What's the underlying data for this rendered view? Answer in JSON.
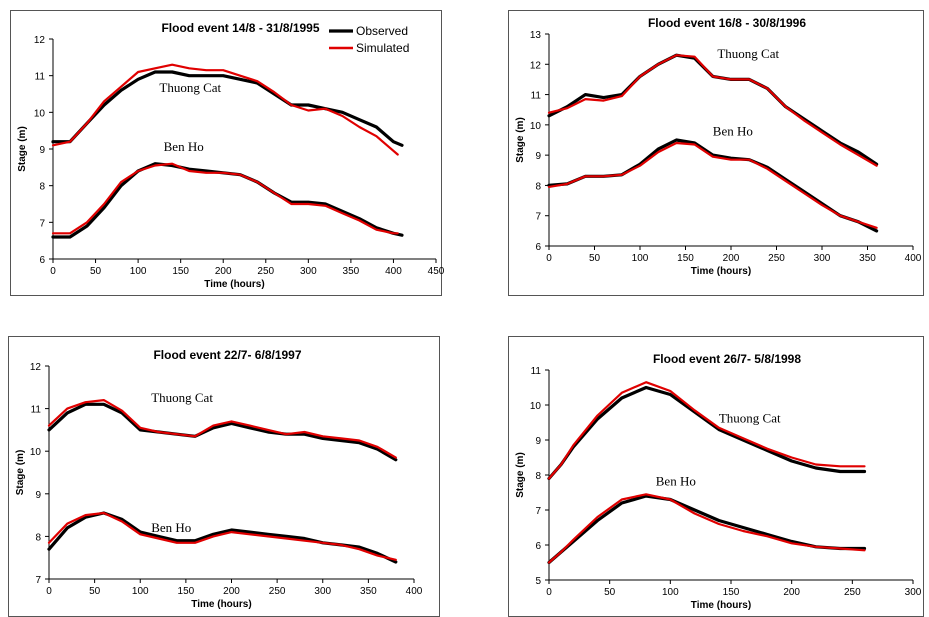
{
  "chart_data": [
    {
      "type": "line",
      "title": "Flood event 14/8 - 31/8/1995",
      "xlabel": "Time (hours)",
      "ylabel": "Stage (m)",
      "xlim": [
        0,
        450
      ],
      "ylim": [
        6,
        12
      ],
      "xticks": [
        "0",
        "50",
        "100",
        "150",
        "200",
        "250",
        "300",
        "350",
        "400",
        "450"
      ],
      "yticks": [
        "6",
        "7",
        "8",
        "9",
        "10",
        "11",
        "12"
      ],
      "legend": {
        "position": "top-right",
        "entries": [
          "Observed",
          "Simulated"
        ]
      },
      "series": [
        {
          "name": "Observed",
          "station": "Thuong Cat",
          "color": "#000000",
          "x": [
            0,
            20,
            40,
            60,
            80,
            100,
            120,
            140,
            160,
            180,
            200,
            220,
            240,
            260,
            280,
            300,
            320,
            340,
            360,
            380,
            400,
            410
          ],
          "y": [
            9.2,
            9.2,
            9.7,
            10.2,
            10.6,
            10.9,
            11.1,
            11.1,
            11.0,
            11.0,
            11.0,
            10.9,
            10.8,
            10.5,
            10.2,
            10.2,
            10.1,
            10.0,
            9.8,
            9.6,
            9.2,
            9.1
          ]
        },
        {
          "name": "Simulated",
          "station": "Thuong Cat",
          "color": "#e00000",
          "x": [
            0,
            20,
            40,
            60,
            80,
            100,
            120,
            140,
            160,
            180,
            200,
            220,
            240,
            260,
            280,
            300,
            320,
            340,
            360,
            380,
            400,
            405
          ],
          "y": [
            9.1,
            9.2,
            9.7,
            10.3,
            10.7,
            11.1,
            11.2,
            11.3,
            11.2,
            11.15,
            11.15,
            11.0,
            10.85,
            10.55,
            10.2,
            10.05,
            10.1,
            9.9,
            9.6,
            9.35,
            8.95,
            8.85
          ]
        },
        {
          "name": "Observed",
          "station": "Ben Ho",
          "color": "#000000",
          "x": [
            0,
            20,
            40,
            60,
            80,
            100,
            120,
            140,
            160,
            180,
            200,
            220,
            240,
            260,
            280,
            300,
            320,
            340,
            360,
            380,
            400,
            410
          ],
          "y": [
            6.6,
            6.6,
            6.9,
            7.4,
            8.0,
            8.4,
            8.6,
            8.55,
            8.45,
            8.4,
            8.35,
            8.3,
            8.1,
            7.8,
            7.55,
            7.55,
            7.5,
            7.3,
            7.1,
            6.85,
            6.7,
            6.65
          ]
        },
        {
          "name": "Simulated",
          "station": "Ben Ho",
          "color": "#e00000",
          "x": [
            0,
            20,
            40,
            60,
            80,
            100,
            120,
            140,
            160,
            180,
            200,
            220,
            240,
            260,
            280,
            300,
            320,
            340,
            360,
            380,
            400,
            405
          ],
          "y": [
            6.7,
            6.7,
            7.0,
            7.5,
            8.1,
            8.4,
            8.55,
            8.6,
            8.4,
            8.35,
            8.35,
            8.3,
            8.1,
            7.8,
            7.5,
            7.5,
            7.45,
            7.25,
            7.05,
            6.8,
            6.7,
            6.7
          ]
        }
      ],
      "annotations": [
        {
          "text": "Thuong Cat",
          "x": 125,
          "y": 10.55
        },
        {
          "text": "Ben Ho",
          "x": 130,
          "y": 8.95
        }
      ]
    },
    {
      "type": "line",
      "title": "Flood event 16/8 - 30/8/1996",
      "xlabel": "Time (hours)",
      "ylabel": "Stage (m)",
      "xlim": [
        0,
        400
      ],
      "ylim": [
        6,
        13
      ],
      "xticks": [
        "0",
        "50",
        "100",
        "150",
        "200",
        "250",
        "300",
        "350",
        "400"
      ],
      "yticks": [
        "6",
        "7",
        "8",
        "9",
        "10",
        "11",
        "12",
        "13"
      ],
      "series": [
        {
          "name": "Observed",
          "station": "Thuong Cat",
          "color": "#000000",
          "x": [
            0,
            20,
            40,
            60,
            80,
            100,
            120,
            140,
            160,
            180,
            200,
            220,
            240,
            260,
            280,
            300,
            320,
            340,
            360
          ],
          "y": [
            10.3,
            10.6,
            11.0,
            10.9,
            11.0,
            11.6,
            12.0,
            12.3,
            12.2,
            11.6,
            11.5,
            11.5,
            11.2,
            10.6,
            10.2,
            9.8,
            9.4,
            9.1,
            8.7
          ]
        },
        {
          "name": "Simulated",
          "station": "Thuong Cat",
          "color": "#e00000",
          "x": [
            0,
            20,
            40,
            60,
            80,
            100,
            120,
            140,
            160,
            180,
            200,
            220,
            240,
            260,
            280,
            300,
            320,
            340,
            360
          ],
          "y": [
            10.4,
            10.55,
            10.85,
            10.8,
            10.95,
            11.6,
            12.0,
            12.3,
            12.25,
            11.6,
            11.5,
            11.5,
            11.2,
            10.6,
            10.15,
            9.75,
            9.35,
            9.0,
            8.65
          ]
        },
        {
          "name": "Observed",
          "station": "Ben Ho",
          "color": "#000000",
          "x": [
            0,
            20,
            40,
            60,
            80,
            100,
            120,
            140,
            160,
            180,
            200,
            220,
            240,
            260,
            280,
            300,
            320,
            340,
            360
          ],
          "y": [
            8.0,
            8.05,
            8.3,
            8.3,
            8.35,
            8.7,
            9.2,
            9.5,
            9.4,
            9.0,
            8.9,
            8.85,
            8.6,
            8.2,
            7.8,
            7.4,
            7.0,
            6.8,
            6.5
          ]
        },
        {
          "name": "Simulated",
          "station": "Ben Ho",
          "color": "#e00000",
          "x": [
            0,
            20,
            40,
            60,
            80,
            100,
            120,
            140,
            160,
            180,
            200,
            220,
            240,
            260,
            280,
            300,
            320,
            340,
            360
          ],
          "y": [
            7.95,
            8.05,
            8.3,
            8.3,
            8.35,
            8.65,
            9.1,
            9.4,
            9.35,
            8.95,
            8.85,
            8.85,
            8.55,
            8.15,
            7.75,
            7.35,
            7.0,
            6.8,
            6.6
          ]
        }
      ],
      "annotations": [
        {
          "text": "Thuong Cat",
          "x": 185,
          "y": 12.2
        },
        {
          "text": "Ben Ho",
          "x": 180,
          "y": 9.65
        }
      ]
    },
    {
      "type": "line",
      "title": "Flood event 22/7- 6/8/1997",
      "xlabel": "Time (hours)",
      "ylabel": "Stage (m)",
      "xlim": [
        0,
        400
      ],
      "ylim": [
        7,
        12
      ],
      "xticks": [
        "0",
        "50",
        "100",
        "150",
        "200",
        "250",
        "300",
        "350",
        "400"
      ],
      "yticks": [
        "7",
        "8",
        "9",
        "10",
        "11",
        "12"
      ],
      "series": [
        {
          "name": "Observed",
          "station": "Thuong Cat",
          "color": "#000000",
          "x": [
            0,
            20,
            40,
            60,
            80,
            100,
            120,
            140,
            160,
            180,
            200,
            220,
            240,
            260,
            280,
            300,
            320,
            340,
            360,
            380
          ],
          "y": [
            10.5,
            10.9,
            11.1,
            11.1,
            10.9,
            10.5,
            10.45,
            10.4,
            10.35,
            10.55,
            10.65,
            10.55,
            10.45,
            10.4,
            10.4,
            10.3,
            10.25,
            10.2,
            10.05,
            9.8
          ]
        },
        {
          "name": "Simulated",
          "station": "Thuong Cat",
          "color": "#e00000",
          "x": [
            0,
            20,
            40,
            60,
            80,
            100,
            120,
            140,
            160,
            180,
            200,
            220,
            240,
            260,
            280,
            300,
            320,
            340,
            360,
            380
          ],
          "y": [
            10.6,
            11.0,
            11.15,
            11.2,
            10.95,
            10.55,
            10.45,
            10.4,
            10.35,
            10.6,
            10.7,
            10.6,
            10.5,
            10.4,
            10.45,
            10.35,
            10.3,
            10.25,
            10.1,
            9.85
          ]
        },
        {
          "name": "Observed",
          "station": "Ben Ho",
          "color": "#000000",
          "x": [
            0,
            20,
            40,
            60,
            80,
            100,
            120,
            140,
            160,
            180,
            200,
            220,
            240,
            260,
            280,
            300,
            320,
            340,
            360,
            380
          ],
          "y": [
            7.7,
            8.2,
            8.45,
            8.55,
            8.4,
            8.1,
            8.0,
            7.9,
            7.9,
            8.05,
            8.15,
            8.1,
            8.05,
            8.0,
            7.95,
            7.85,
            7.8,
            7.75,
            7.6,
            7.4
          ]
        },
        {
          "name": "Simulated",
          "station": "Ben Ho",
          "color": "#e00000",
          "x": [
            0,
            20,
            40,
            60,
            80,
            100,
            120,
            140,
            160,
            180,
            200,
            220,
            240,
            260,
            280,
            300,
            320,
            340,
            360,
            380
          ],
          "y": [
            7.85,
            8.3,
            8.5,
            8.55,
            8.35,
            8.05,
            7.95,
            7.85,
            7.85,
            8.0,
            8.1,
            8.05,
            8.0,
            7.95,
            7.9,
            7.85,
            7.8,
            7.7,
            7.55,
            7.45
          ]
        }
      ],
      "annotations": [
        {
          "text": "Thuong Cat",
          "x": 112,
          "y": 11.15
        },
        {
          "text": "Ben Ho",
          "x": 112,
          "y": 8.1
        }
      ]
    },
    {
      "type": "line",
      "title": "Flood event 26/7- 5/8/1998",
      "xlabel": "Time (hours)",
      "ylabel": "Stage (m)",
      "xlim": [
        0,
        300
      ],
      "ylim": [
        5,
        11
      ],
      "xticks": [
        "0",
        "50",
        "100",
        "150",
        "200",
        "250",
        "300"
      ],
      "yticks": [
        "5",
        "6",
        "7",
        "8",
        "9",
        "10",
        "11"
      ],
      "series": [
        {
          "name": "Observed",
          "station": "Thuong Cat",
          "color": "#000000",
          "x": [
            0,
            10,
            20,
            40,
            60,
            80,
            100,
            120,
            140,
            160,
            180,
            200,
            220,
            240,
            260
          ],
          "y": [
            7.9,
            8.3,
            8.8,
            9.6,
            10.2,
            10.5,
            10.3,
            9.8,
            9.3,
            9.0,
            8.7,
            8.4,
            8.2,
            8.1,
            8.1
          ]
        },
        {
          "name": "Simulated",
          "station": "Thuong Cat",
          "color": "#e00000",
          "x": [
            0,
            10,
            20,
            40,
            60,
            80,
            100,
            120,
            140,
            160,
            180,
            200,
            220,
            240,
            260
          ],
          "y": [
            7.9,
            8.3,
            8.85,
            9.7,
            10.35,
            10.65,
            10.4,
            9.85,
            9.35,
            9.05,
            8.75,
            8.5,
            8.3,
            8.25,
            8.25
          ]
        },
        {
          "name": "Observed",
          "station": "Ben Ho",
          "color": "#000000",
          "x": [
            0,
            10,
            20,
            40,
            60,
            80,
            100,
            120,
            140,
            160,
            180,
            200,
            220,
            240,
            260
          ],
          "y": [
            5.5,
            5.8,
            6.1,
            6.7,
            7.2,
            7.4,
            7.3,
            7.0,
            6.7,
            6.5,
            6.3,
            6.1,
            5.95,
            5.9,
            5.9
          ]
        },
        {
          "name": "Simulated",
          "station": "Ben Ho",
          "color": "#e00000",
          "x": [
            0,
            10,
            20,
            40,
            60,
            80,
            100,
            120,
            140,
            160,
            180,
            200,
            220,
            240,
            260
          ],
          "y": [
            5.5,
            5.8,
            6.15,
            6.8,
            7.3,
            7.45,
            7.3,
            6.9,
            6.6,
            6.4,
            6.25,
            6.05,
            5.95,
            5.9,
            5.85
          ]
        }
      ],
      "annotations": [
        {
          "text": "Thuong Cat",
          "x": 140,
          "y": 9.5
        },
        {
          "text": "Ben Ho",
          "x": 88,
          "y": 7.7
        }
      ]
    }
  ]
}
